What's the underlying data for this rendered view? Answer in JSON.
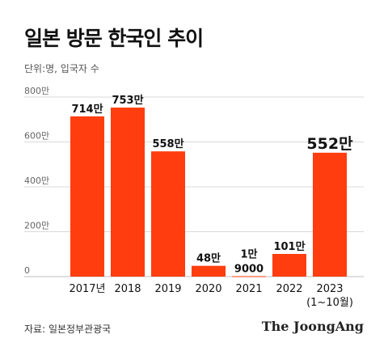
{
  "title": "일본 방문 한국인 추이",
  "subtitle": "단위:명, 입국자 수",
  "source": "자료: 일본정부관광국",
  "brand": "The JoongAng",
  "colors": {
    "bar": "#ff3d0f",
    "grid": "#d9d9d9",
    "axis_text": "#666666",
    "label": "#111111"
  },
  "chart_data": {
    "type": "bar",
    "title": "일본 방문 한국인 추이",
    "unit": "단위:명, 입국자 수",
    "categories": [
      "2017년",
      "2018",
      "2019",
      "2020",
      "2021",
      "2022",
      "2023\n(1~10월)"
    ],
    "values": [
      714,
      753,
      558,
      48,
      1.9,
      101,
      552
    ],
    "data_labels": [
      "714만",
      "753만",
      "558만",
      "48만",
      "1만\n9000",
      "101만",
      "552만"
    ],
    "y_ticks": [
      0,
      200,
      400,
      600,
      800
    ],
    "y_tick_labels": [
      "0",
      "200만",
      "400만",
      "600만",
      "800만"
    ],
    "ylim": [
      0,
      800
    ],
    "grid": true,
    "highlight_index": 6
  }
}
